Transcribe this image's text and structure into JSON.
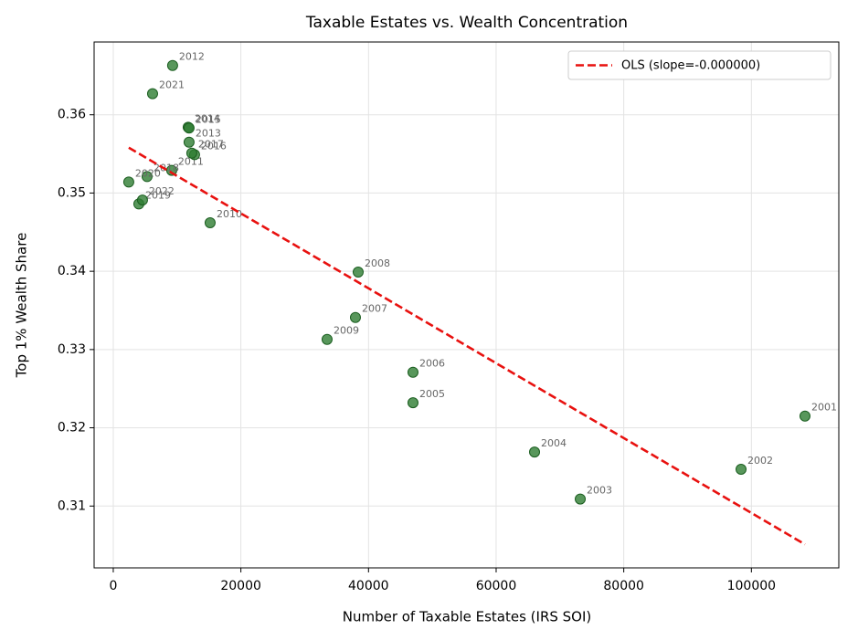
{
  "chart_data": {
    "type": "scatter",
    "title": "Taxable Estates vs. Wealth Concentration",
    "x_label": "Number of Taxable Estates (IRS SOI)",
    "y_label": "Top 1% Wealth Share",
    "labels": [
      "2001",
      "2002",
      "2003",
      "2004",
      "2005",
      "2006",
      "2007",
      "2008",
      "2009",
      "2010",
      "2011",
      "2012",
      "2013",
      "2014",
      "2015",
      "2016",
      "2017",
      "2018",
      "2019",
      "2020",
      "2021",
      "2022"
    ],
    "x": [
      108400,
      98380,
      73180,
      66020,
      46970,
      46970,
      37950,
      38380,
      33510,
      15180,
      9160,
      9300,
      11880,
      11740,
      11880,
      12740,
      12310,
      5300,
      4010,
      2430,
      6160,
      4580
    ],
    "values": [
      0.3215,
      0.3147,
      0.3109,
      0.3169,
      0.3232,
      0.3271,
      0.3341,
      0.3399,
      0.3313,
      0.3462,
      0.3529,
      0.3663,
      0.3565,
      0.3584,
      0.3583,
      0.3549,
      0.3551,
      0.3521,
      0.3486,
      0.3514,
      0.3627,
      0.3491
    ],
    "color": "#2e7d32",
    "fit": {
      "name": "OLS (slope=-0.000000)",
      "color": "#e8110f",
      "x": [
        2430,
        108400
      ],
      "values": [
        0.3558,
        0.3051
      ]
    },
    "xlim": [
      -3000,
      113700
    ],
    "ylim": [
      0.3021,
      0.3693
    ],
    "xticks": [
      0,
      20000,
      40000,
      60000,
      80000,
      100000
    ],
    "yticks": [
      0.31,
      0.32,
      0.33,
      0.34,
      0.35,
      0.36
    ],
    "grid": true,
    "legend": "upper right"
  }
}
